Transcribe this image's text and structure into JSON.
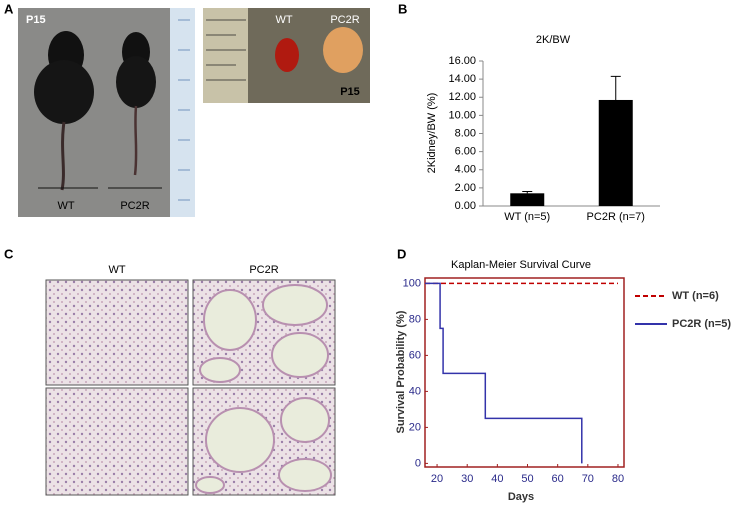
{
  "panel_labels": [
    "A",
    "B",
    "C",
    "D"
  ],
  "photo_mice": [
    "P15",
    "WT",
    "PC2R"
  ],
  "photo_kidneys": [
    "WT",
    "PC2R",
    "P15"
  ],
  "histology": [
    "WT",
    "PC2R"
  ],
  "chart_data": [
    {
      "type": "bar",
      "title": "2K/BW",
      "y_label": "2Kidney/BW (%)",
      "categories": [
        "WT (n=5)",
        "PC2R (n=7)"
      ],
      "values": [
        1.4,
        11.7
      ],
      "errors": [
        0.2,
        2.6
      ],
      "color": "#000000",
      "ylim": [
        0,
        16
      ],
      "yticks": [
        {
          "value": 0,
          "label": "0.00"
        },
        {
          "value": 2,
          "label": "2.00"
        },
        {
          "value": 4,
          "label": "4.00"
        },
        {
          "value": 6,
          "label": "6.00"
        },
        {
          "value": 8,
          "label": "8.00"
        },
        {
          "value": 10,
          "label": "10.00"
        },
        {
          "value": 12,
          "label": "12.00"
        },
        {
          "value": 14,
          "label": "14.00"
        },
        {
          "value": 16,
          "label": "16.00"
        }
      ]
    },
    {
      "type": "line",
      "title": "Kaplan-Meier Survival Curve",
      "x_label": "Days",
      "y_label": "Survival Probability (%)",
      "xlim": [
        16,
        82
      ],
      "ylim": [
        -2,
        103
      ],
      "xticks": [
        20,
        30,
        40,
        50,
        60,
        70,
        80
      ],
      "yticks": [
        0,
        20,
        40,
        60,
        80,
        100
      ],
      "legend": "right",
      "series": [
        {
          "name": "WT (n=6)",
          "color": "#c00000",
          "style": "dashed",
          "x": [
            16,
            80
          ],
          "values": [
            100,
            100
          ]
        },
        {
          "name": "PC2R (n=5)",
          "color": "#3333aa",
          "style": "solid",
          "x": [
            16,
            21,
            21,
            22,
            22,
            36,
            36,
            68,
            68
          ],
          "values": [
            100,
            100,
            75,
            75,
            50,
            50,
            25,
            25,
            0
          ]
        }
      ]
    }
  ]
}
